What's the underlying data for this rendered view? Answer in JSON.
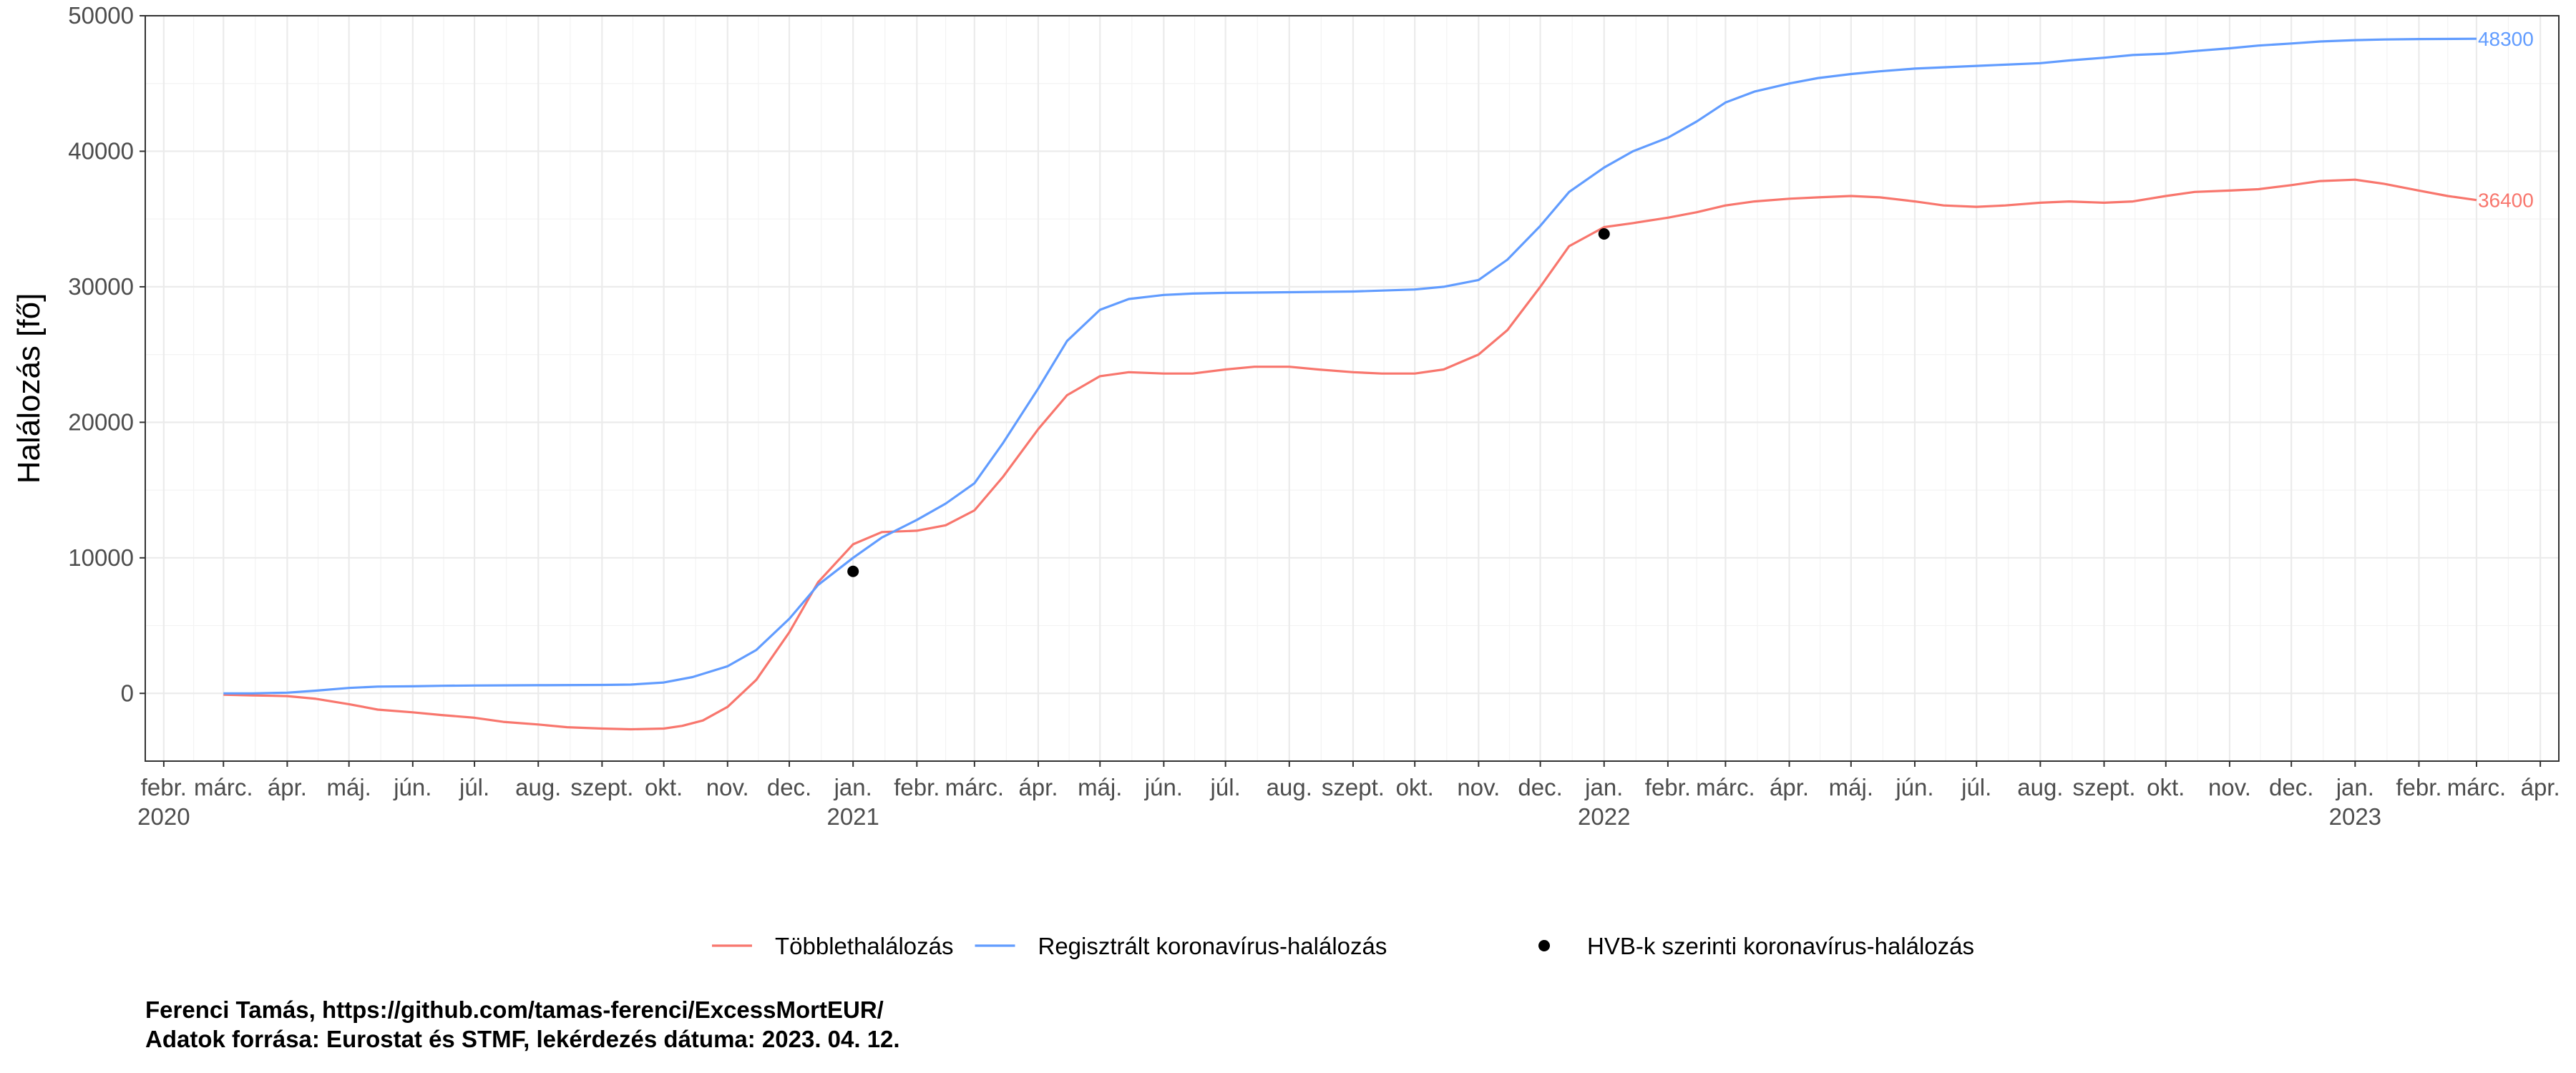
{
  "chart_data": {
    "type": "line",
    "title": "",
    "xlabel": "",
    "ylabel": "Halálozás [fő]",
    "ylim": [
      -5000,
      50000
    ],
    "xlim": [
      "2020-01-23",
      "2023-04-10"
    ],
    "y_ticks": [
      0,
      10000,
      20000,
      30000,
      40000,
      50000
    ],
    "x_ticks": [
      {
        "date": "2020-02-01",
        "month": "febr.",
        "year": "2020"
      },
      {
        "date": "2020-03-01",
        "month": "márc.",
        "year": ""
      },
      {
        "date": "2020-04-01",
        "month": "ápr.",
        "year": ""
      },
      {
        "date": "2020-05-01",
        "month": "máj.",
        "year": ""
      },
      {
        "date": "2020-06-01",
        "month": "jún.",
        "year": ""
      },
      {
        "date": "2020-07-01",
        "month": "júl.",
        "year": ""
      },
      {
        "date": "2020-08-01",
        "month": "aug.",
        "year": ""
      },
      {
        "date": "2020-09-01",
        "month": "szept.",
        "year": ""
      },
      {
        "date": "2020-10-01",
        "month": "okt.",
        "year": ""
      },
      {
        "date": "2020-11-01",
        "month": "nov.",
        "year": ""
      },
      {
        "date": "2020-12-01",
        "month": "dec.",
        "year": ""
      },
      {
        "date": "2021-01-01",
        "month": "jan.",
        "year": "2021"
      },
      {
        "date": "2021-02-01",
        "month": "febr.",
        "year": ""
      },
      {
        "date": "2021-03-01",
        "month": "márc.",
        "year": ""
      },
      {
        "date": "2021-04-01",
        "month": "ápr.",
        "year": ""
      },
      {
        "date": "2021-05-01",
        "month": "máj.",
        "year": ""
      },
      {
        "date": "2021-06-01",
        "month": "jún.",
        "year": ""
      },
      {
        "date": "2021-07-01",
        "month": "júl.",
        "year": ""
      },
      {
        "date": "2021-08-01",
        "month": "aug.",
        "year": ""
      },
      {
        "date": "2021-09-01",
        "month": "szept.",
        "year": ""
      },
      {
        "date": "2021-10-01",
        "month": "okt.",
        "year": ""
      },
      {
        "date": "2021-11-01",
        "month": "nov.",
        "year": ""
      },
      {
        "date": "2021-12-01",
        "month": "dec.",
        "year": ""
      },
      {
        "date": "2022-01-01",
        "month": "jan.",
        "year": "2022"
      },
      {
        "date": "2022-02-01",
        "month": "febr.",
        "year": ""
      },
      {
        "date": "2022-03-01",
        "month": "márc.",
        "year": ""
      },
      {
        "date": "2022-04-01",
        "month": "ápr.",
        "year": ""
      },
      {
        "date": "2022-05-01",
        "month": "máj.",
        "year": ""
      },
      {
        "date": "2022-06-01",
        "month": "jún.",
        "year": ""
      },
      {
        "date": "2022-07-01",
        "month": "júl.",
        "year": ""
      },
      {
        "date": "2022-08-01",
        "month": "aug.",
        "year": ""
      },
      {
        "date": "2022-09-01",
        "month": "szept.",
        "year": ""
      },
      {
        "date": "2022-10-01",
        "month": "okt.",
        "year": ""
      },
      {
        "date": "2022-11-01",
        "month": "nov.",
        "year": ""
      },
      {
        "date": "2022-12-01",
        "month": "dec.",
        "year": ""
      },
      {
        "date": "2023-01-01",
        "month": "jan.",
        "year": "2023"
      },
      {
        "date": "2023-02-01",
        "month": "febr.",
        "year": ""
      },
      {
        "date": "2023-03-01",
        "month": "márc.",
        "year": ""
      },
      {
        "date": "2023-04-01",
        "month": "ápr.",
        "year": ""
      }
    ],
    "grid": true,
    "legend_position": "bottom",
    "series": [
      {
        "name": "Többlethalálozás",
        "color": "#F8766D",
        "end_label": "36400",
        "points": [
          [
            "2020-03-01",
            -100
          ],
          [
            "2020-03-15",
            -150
          ],
          [
            "2020-04-01",
            -200
          ],
          [
            "2020-04-15",
            -400
          ],
          [
            "2020-05-01",
            -800
          ],
          [
            "2020-05-15",
            -1200
          ],
          [
            "2020-06-01",
            -1400
          ],
          [
            "2020-06-15",
            -1600
          ],
          [
            "2020-07-01",
            -1800
          ],
          [
            "2020-07-15",
            -2100
          ],
          [
            "2020-08-01",
            -2300
          ],
          [
            "2020-08-15",
            -2500
          ],
          [
            "2020-09-01",
            -2600
          ],
          [
            "2020-09-15",
            -2650
          ],
          [
            "2020-10-01",
            -2600
          ],
          [
            "2020-10-10",
            -2400
          ],
          [
            "2020-10-20",
            -2000
          ],
          [
            "2020-11-01",
            -1000
          ],
          [
            "2020-11-15",
            1000
          ],
          [
            "2020-12-01",
            4500
          ],
          [
            "2020-12-15",
            8200
          ],
          [
            "2021-01-01",
            11000
          ],
          [
            "2021-01-15",
            11900
          ],
          [
            "2021-02-01",
            12000
          ],
          [
            "2021-02-15",
            12400
          ],
          [
            "2021-03-01",
            13500
          ],
          [
            "2021-03-15",
            16000
          ],
          [
            "2021-04-01",
            19500
          ],
          [
            "2021-04-15",
            22000
          ],
          [
            "2021-05-01",
            23400
          ],
          [
            "2021-05-15",
            23700
          ],
          [
            "2021-06-01",
            23600
          ],
          [
            "2021-06-15",
            23600
          ],
          [
            "2021-07-01",
            23900
          ],
          [
            "2021-07-15",
            24100
          ],
          [
            "2021-08-01",
            24100
          ],
          [
            "2021-08-15",
            23900
          ],
          [
            "2021-09-01",
            23700
          ],
          [
            "2021-09-15",
            23600
          ],
          [
            "2021-10-01",
            23600
          ],
          [
            "2021-10-15",
            23900
          ],
          [
            "2021-11-01",
            25000
          ],
          [
            "2021-11-15",
            26800
          ],
          [
            "2021-12-01",
            30000
          ],
          [
            "2021-12-15",
            33000
          ],
          [
            "2022-01-01",
            34400
          ],
          [
            "2022-01-15",
            34700
          ],
          [
            "2022-02-01",
            35100
          ],
          [
            "2022-02-15",
            35500
          ],
          [
            "2022-03-01",
            36000
          ],
          [
            "2022-03-15",
            36300
          ],
          [
            "2022-04-01",
            36500
          ],
          [
            "2022-04-15",
            36600
          ],
          [
            "2022-05-01",
            36700
          ],
          [
            "2022-05-15",
            36600
          ],
          [
            "2022-06-01",
            36300
          ],
          [
            "2022-06-15",
            36000
          ],
          [
            "2022-07-01",
            35900
          ],
          [
            "2022-07-15",
            36000
          ],
          [
            "2022-08-01",
            36200
          ],
          [
            "2022-08-15",
            36300
          ],
          [
            "2022-09-01",
            36200
          ],
          [
            "2022-09-15",
            36300
          ],
          [
            "2022-10-01",
            36700
          ],
          [
            "2022-10-15",
            37000
          ],
          [
            "2022-11-01",
            37100
          ],
          [
            "2022-11-15",
            37200
          ],
          [
            "2022-12-01",
            37500
          ],
          [
            "2022-12-15",
            37800
          ],
          [
            "2023-01-01",
            37900
          ],
          [
            "2023-01-15",
            37600
          ],
          [
            "2023-02-01",
            37100
          ],
          [
            "2023-02-15",
            36700
          ],
          [
            "2023-03-01",
            36400
          ]
        ]
      },
      {
        "name": "Regisztrált koronavírus-halálozás",
        "color": "#619CFF",
        "end_label": "48300",
        "points": [
          [
            "2020-03-01",
            0
          ],
          [
            "2020-03-15",
            0
          ],
          [
            "2020-04-01",
            50
          ],
          [
            "2020-04-15",
            200
          ],
          [
            "2020-05-01",
            400
          ],
          [
            "2020-05-15",
            500
          ],
          [
            "2020-06-01",
            520
          ],
          [
            "2020-06-15",
            560
          ],
          [
            "2020-07-01",
            580
          ],
          [
            "2020-08-01",
            600
          ],
          [
            "2020-09-01",
            620
          ],
          [
            "2020-09-15",
            650
          ],
          [
            "2020-10-01",
            800
          ],
          [
            "2020-10-15",
            1200
          ],
          [
            "2020-11-01",
            2000
          ],
          [
            "2020-11-15",
            3200
          ],
          [
            "2020-12-01",
            5500
          ],
          [
            "2020-12-15",
            8000
          ],
          [
            "2021-01-01",
            10000
          ],
          [
            "2021-01-15",
            11500
          ],
          [
            "2021-02-01",
            12800
          ],
          [
            "2021-02-15",
            14000
          ],
          [
            "2021-03-01",
            15500
          ],
          [
            "2021-03-15",
            18500
          ],
          [
            "2021-04-01",
            22500
          ],
          [
            "2021-04-15",
            26000
          ],
          [
            "2021-05-01",
            28300
          ],
          [
            "2021-05-15",
            29100
          ],
          [
            "2021-06-01",
            29400
          ],
          [
            "2021-06-15",
            29500
          ],
          [
            "2021-07-01",
            29550
          ],
          [
            "2021-08-01",
            29600
          ],
          [
            "2021-09-01",
            29650
          ],
          [
            "2021-10-01",
            29800
          ],
          [
            "2021-10-15",
            30000
          ],
          [
            "2021-11-01",
            30500
          ],
          [
            "2021-11-15",
            32000
          ],
          [
            "2021-12-01",
            34500
          ],
          [
            "2021-12-15",
            37000
          ],
          [
            "2022-01-01",
            38800
          ],
          [
            "2022-01-15",
            40000
          ],
          [
            "2022-02-01",
            41000
          ],
          [
            "2022-02-15",
            42200
          ],
          [
            "2022-03-01",
            43600
          ],
          [
            "2022-03-15",
            44400
          ],
          [
            "2022-04-01",
            45000
          ],
          [
            "2022-04-15",
            45400
          ],
          [
            "2022-05-01",
            45700
          ],
          [
            "2022-05-15",
            45900
          ],
          [
            "2022-06-01",
            46100
          ],
          [
            "2022-07-01",
            46300
          ],
          [
            "2022-08-01",
            46500
          ],
          [
            "2022-08-15",
            46700
          ],
          [
            "2022-09-01",
            46900
          ],
          [
            "2022-09-15",
            47100
          ],
          [
            "2022-10-01",
            47200
          ],
          [
            "2022-10-15",
            47400
          ],
          [
            "2022-11-01",
            47600
          ],
          [
            "2022-11-15",
            47800
          ],
          [
            "2022-12-01",
            47950
          ],
          [
            "2022-12-15",
            48100
          ],
          [
            "2023-01-01",
            48200
          ],
          [
            "2023-01-15",
            48250
          ],
          [
            "2023-02-01",
            48280
          ],
          [
            "2023-03-01",
            48300
          ]
        ]
      }
    ],
    "points_series": {
      "name": "HVB-k szerinti koronavírus-halálozás",
      "color": "#000000",
      "points": [
        [
          "2021-01-01",
          9000
        ],
        [
          "2022-01-01",
          33900
        ]
      ]
    }
  },
  "legend": {
    "items": [
      {
        "label": "Többlethalálozás",
        "color": "#F8766D",
        "kind": "line"
      },
      {
        "label": "Regisztrált koronavírus-halálozás",
        "color": "#619CFF",
        "kind": "line"
      },
      {
        "label": "HVB-k szerinti koronavírus-halálozás",
        "color": "#000000",
        "kind": "point"
      }
    ]
  },
  "caption": {
    "line1": "Ferenci Tamás, https://github.com/tamas-ferenci/ExcessMortEUR/",
    "line2": "Adatok forrása: Eurostat és STMF, lekérdezés dátuma: 2023. 04. 12."
  }
}
